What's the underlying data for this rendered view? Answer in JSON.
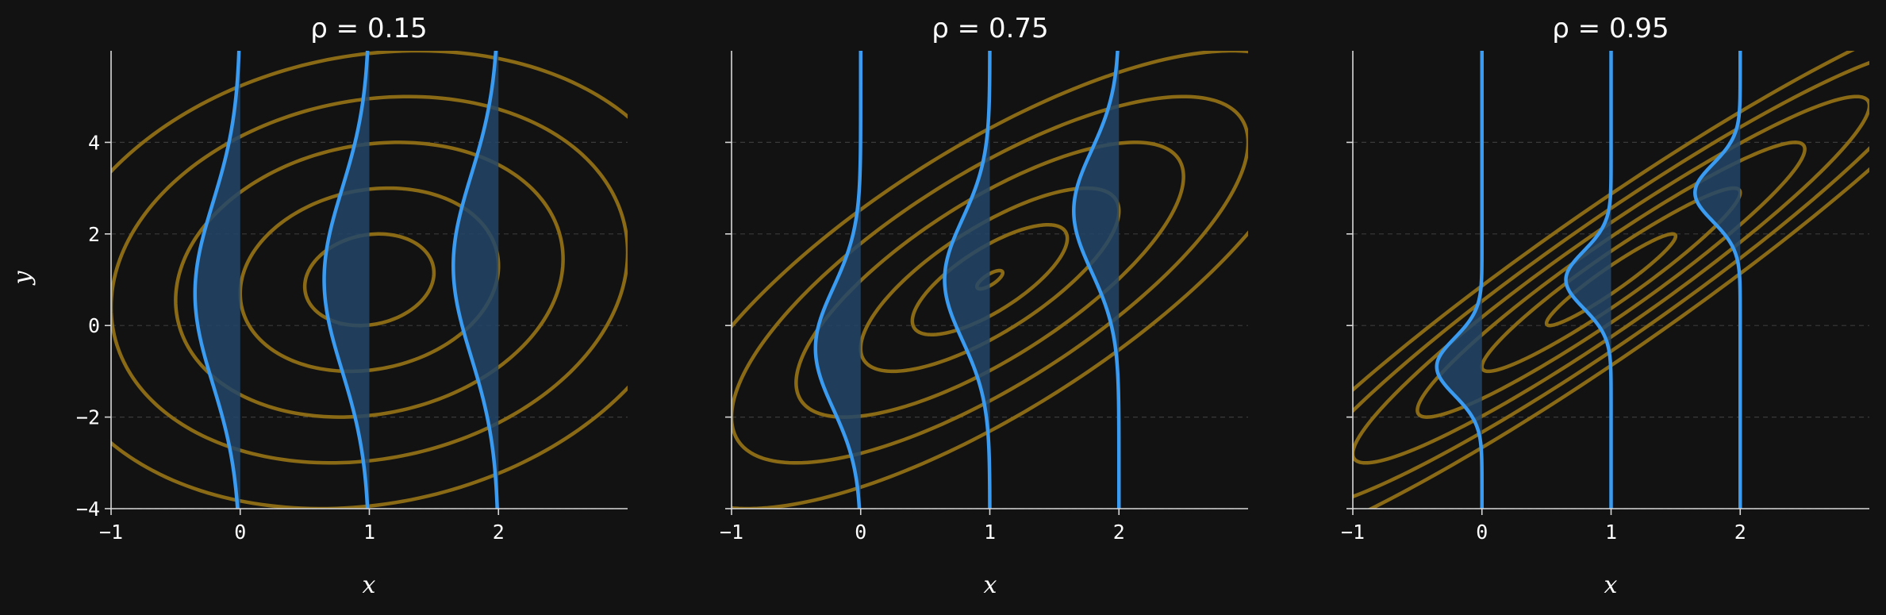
{
  "chart_data": [
    {
      "type": "contour",
      "title": "ρ = 0.15",
      "rho": 0.15,
      "xlabel": "x",
      "ylabel": "y",
      "xlim": [
        -1,
        3
      ],
      "ylim": [
        -4,
        6
      ],
      "xticks": [
        -1,
        0,
        1,
        2
      ],
      "yticks": [
        -4,
        -2,
        0,
        2,
        4
      ],
      "grid": "horizontal dashed",
      "mean": [
        1.0,
        1.0
      ],
      "sd": [
        1.0,
        2.0
      ],
      "contour_levels_sigma": [
        0.5,
        1.0,
        1.5,
        2.0,
        2.5
      ],
      "conditional_slices_at_x": [
        0,
        1,
        2
      ],
      "conditional_curve_height": 0.35,
      "colors": {
        "contour": "#8a6a15",
        "conditional": "#3a9bf0",
        "fill": "#23476a",
        "background": "#121212"
      }
    },
    {
      "type": "contour",
      "title": "ρ = 0.75",
      "rho": 0.75,
      "xlabel": "x",
      "ylabel": "",
      "xlim": [
        -1,
        3
      ],
      "ylim": [
        -4,
        6
      ],
      "xticks": [
        -1,
        0,
        1,
        2
      ],
      "yticks": [
        -4,
        -2,
        0,
        2,
        4
      ],
      "grid": "horizontal dashed",
      "mean": [
        1.0,
        1.0
      ],
      "sd": [
        1.0,
        2.0
      ],
      "contour_levels_sigma": [
        0.1,
        0.6,
        1.0,
        1.5,
        2.0,
        2.5
      ],
      "conditional_slices_at_x": [
        0,
        1,
        2
      ],
      "conditional_curve_height": 0.35,
      "colors": {
        "contour": "#8a6a15",
        "conditional": "#3a9bf0",
        "fill": "#23476a",
        "background": "#121212"
      }
    },
    {
      "type": "contour",
      "title": "ρ = 0.95",
      "rho": 0.95,
      "xlabel": "x",
      "ylabel": "",
      "xlim": [
        -1,
        3
      ],
      "ylim": [
        -4,
        6
      ],
      "xticks": [
        -1,
        0,
        1,
        2
      ],
      "yticks": [
        -4,
        -2,
        0,
        2,
        4
      ],
      "grid": "horizontal dashed",
      "mean": [
        1.0,
        1.0
      ],
      "sd": [
        1.0,
        2.0
      ],
      "contour_levels_sigma": [
        0.5,
        1.0,
        1.5,
        2.0,
        2.5,
        3.0
      ],
      "conditional_slices_at_x": [
        0,
        1,
        2
      ],
      "conditional_curve_height": 0.35,
      "colors": {
        "contour": "#8a6a15",
        "conditional": "#3a9bf0",
        "fill": "#23476a",
        "background": "#121212"
      }
    }
  ]
}
